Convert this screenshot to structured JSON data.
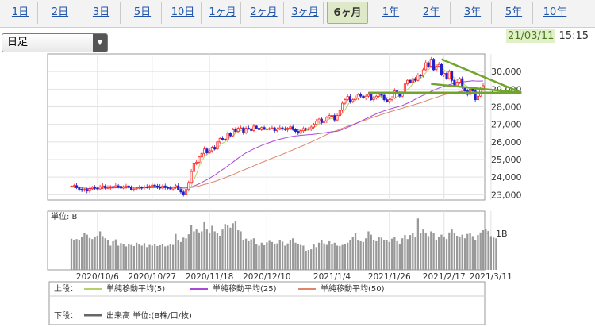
{
  "tabs": [
    {
      "label": "1日",
      "active": false
    },
    {
      "label": "2日",
      "active": false
    },
    {
      "label": "3日",
      "active": false
    },
    {
      "label": "5日",
      "active": false
    },
    {
      "label": "10日",
      "active": false
    },
    {
      "label": "1ヶ月",
      "active": false
    },
    {
      "label": "2ヶ月",
      "active": false
    },
    {
      "label": "3ヶ月",
      "active": false
    },
    {
      "label": "6ヶ月",
      "active": true
    },
    {
      "label": "1年",
      "active": false
    },
    {
      "label": "2年",
      "active": false
    },
    {
      "label": "3年",
      "active": false
    },
    {
      "label": "5年",
      "active": false
    },
    {
      "label": "10年",
      "active": false
    }
  ],
  "controls": {
    "period_select": "日足"
  },
  "header": {
    "date": "21/03/11",
    "time": "15:15"
  },
  "colors": {
    "ma5": "#b5d26a",
    "ma25": "#a84ad8",
    "ma50": "#e0846b",
    "trend": "#6fa62a",
    "up": "#ff2222",
    "down": "#2222cc",
    "volume": "#999999"
  },
  "chart_data": {
    "type": "candlestick",
    "x_tick_labels": [
      "2020/10/6",
      "2020/10/27",
      "2020/11/18",
      "2020/12/10",
      "2021/1/4",
      "2021/1/26",
      "2021/2/17",
      "2021/3/11"
    ],
    "y_tick_labels": [
      "23,000",
      "24,000",
      "25,000",
      "26,000",
      "27,000",
      "28,000",
      "29,000",
      "30,000"
    ],
    "ylim": [
      22700,
      31000
    ],
    "close_series": [
      23480,
      23520,
      23400,
      23310,
      23250,
      23300,
      23210,
      23350,
      23420,
      23380,
      23330,
      23460,
      23500,
      23390,
      23410,
      23470,
      23440,
      23510,
      23480,
      23380,
      23460,
      23500,
      23430,
      23300,
      23330,
      23380,
      23420,
      23390,
      23450,
      23410,
      23480,
      23550,
      23500,
      23450,
      23380,
      23500,
      23410,
      23390,
      23330,
      23420,
      23510,
      23300,
      23160,
      22990,
      23300,
      23700,
      24320,
      24800,
      24850,
      25150,
      25350,
      25600,
      25380,
      25500,
      25700,
      25600,
      26000,
      26200,
      26150,
      26100,
      26500,
      26350,
      26700,
      26600,
      26780,
      26800,
      26520,
      26780,
      26750,
      26650,
      26900,
      26780,
      26700,
      26820,
      26720,
      26740,
      26760,
      26800,
      26640,
      26720,
      26800,
      26750,
      26700,
      26780,
      26860,
      26700,
      26600,
      26500,
      26640,
      26760,
      26720,
      26750,
      26850,
      27000,
      27180,
      27300,
      27100,
      27200,
      27400,
      27500,
      27500,
      27250,
      27500,
      27800,
      28200,
      28400,
      28580,
      28300,
      28400,
      28500,
      28700,
      28600,
      28500,
      28600,
      28700,
      28400,
      28500,
      28600,
      28700,
      28650,
      28400,
      28300,
      28400,
      28500,
      28900,
      28750,
      28600,
      28800,
      29300,
      29500,
      29380,
      29600,
      29500,
      29800,
      29750,
      30100,
      30500,
      30300,
      30700,
      30100,
      30300,
      30400,
      29800,
      29900,
      29600,
      30000,
      29500,
      29200,
      29400,
      29600,
      29100,
      28900,
      28700,
      29000,
      28900,
      28400,
      28600,
      29000,
      29200
    ],
    "ma5": [
      23480,
      23503,
      23470,
      23427,
      23392,
      23356,
      23294,
      23284,
      23306,
      23332,
      23358,
      23388,
      23416,
      23412,
      23418,
      23446,
      23442,
      23444,
      23462,
      23456,
      23456,
      23466,
      23454,
      23414,
      23404,
      23388,
      23372,
      23384,
      23394,
      23410,
      23430,
      23458,
      23476,
      23478,
      23472,
      23456,
      23448,
      23426,
      23404,
      23412,
      23412,
      23392,
      23344,
      23284,
      23236,
      23270,
      23494,
      23854,
      24194,
      24624,
      24894,
      25150,
      25266,
      25396,
      25506,
      25566,
      25636,
      25800,
      25930,
      26010,
      26190,
      26260,
      26360,
      26490,
      26586,
      26646,
      26680,
      26696,
      26730,
      26700,
      26720,
      26772,
      26756,
      26770,
      26784,
      26752,
      26748,
      26768,
      26732,
      26732,
      26744,
      26742,
      26722,
      26750,
      26778,
      26758,
      26728,
      26688,
      26660,
      26640,
      26644,
      26674,
      26744,
      26816,
      26900,
      27022,
      27086,
      27156,
      27236,
      27300,
      27340,
      27350,
      27370,
      27450,
      27650,
      27830,
      28096,
      28296,
      28376,
      28436,
      28496,
      28520,
      28540,
      28580,
      28620,
      28560,
      28540,
      28560,
      28580,
      28570,
      28550,
      28530,
      28490,
      28450,
      28500,
      28570,
      28630,
      28710,
      28870,
      28990,
      29116,
      29316,
      29456,
      29556,
      29606,
      29750,
      29930,
      30090,
      30280,
      30340,
      30380,
      30360,
      30280,
      30100,
      30000,
      29940,
      29760,
      29640,
      29540,
      29540,
      29380,
      29240,
      29140,
      29060,
      28940,
      28780,
      28720,
      28740,
      28780
    ],
    "ma25": [
      23480,
      23500,
      23467,
      23428,
      23392,
      23377,
      23353,
      23353,
      23360,
      23362,
      23359,
      23367,
      23378,
      23379,
      23381,
      23387,
      23390,
      23397,
      23402,
      23401,
      23404,
      23408,
      23409,
      23402,
      23398,
      23400,
      23398,
      23398,
      23400,
      23403,
      23405,
      23407,
      23408,
      23408,
      23409,
      23410,
      23410,
      23409,
      23409,
      23410,
      23415,
      23407,
      23397,
      23382,
      23384,
      23399,
      23442,
      23497,
      23556,
      23624,
      23697,
      23778,
      23855,
      23935,
      24027,
      24116,
      24219,
      24329,
      24430,
      24529,
      24639,
      24742,
      24858,
      24968,
      25082,
      25187,
      25284,
      25378,
      25458,
      25534,
      25603,
      25673,
      25737,
      25802,
      25860,
      25917,
      25968,
      26018,
      26066,
      26116,
      26154,
      26191,
      26228,
      26258,
      26292,
      26320,
      26344,
      26356,
      26375,
      26390,
      26400,
      26417,
      26423,
      26439,
      26455,
      26475,
      26492,
      26513,
      26539,
      26562,
      26584,
      26596,
      26617,
      26650,
      26705,
      26767,
      26836,
      26894,
      26962,
      27031,
      27100,
      27175,
      27246,
      27319,
      27389,
      27458,
      27530,
      27596,
      27659,
      27717,
      27764,
      27805,
      27856,
      27904,
      27945,
      27982,
      28030,
      28079,
      28136,
      28204,
      28271,
      28352,
      28428,
      28508,
      28580,
      28648,
      28721,
      28793,
      28876,
      28935,
      28998,
      29059,
      29110,
      29158,
      29206,
      29257,
      29292,
      29326,
      29356,
      29383,
      29407,
      29426,
      29442,
      29460,
      29474,
      29466,
      29462,
      29464,
      29466
    ],
    "ma50": [
      23480,
      23500,
      23467,
      23428,
      23392,
      23377,
      23353,
      23353,
      23360,
      23362,
      23359,
      23367,
      23378,
      23379,
      23381,
      23387,
      23390,
      23397,
      23402,
      23401,
      23404,
      23408,
      23409,
      23402,
      23398,
      23400,
      23398,
      23398,
      23400,
      23403,
      23405,
      23407,
      23408,
      23408,
      23409,
      23410,
      23410,
      23409,
      23409,
      23410,
      23415,
      23407,
      23397,
      23382,
      23384,
      23399,
      23414,
      23440,
      23465,
      23499,
      23539,
      23584,
      23622,
      23667,
      23713,
      23754,
      23806,
      23862,
      23915,
      23967,
      24029,
      24081,
      24148,
      24208,
      24274,
      24339,
      24394,
      24461,
      24520,
      24578,
      24646,
      24706,
      24765,
      24832,
      24887,
      24950,
      25010,
      25072,
      25127,
      25185,
      25241,
      25301,
      25360,
      25423,
      25488,
      25552,
      25616,
      25673,
      25739,
      25801,
      25865,
      25926,
      25996,
      26065,
      26138,
      26210,
      26281,
      26350,
      26420,
      26493,
      26559,
      26611,
      26660,
      26716,
      26777,
      26836,
      26891,
      26941,
      26996,
      27050,
      27104,
      27156,
      27208,
      27257,
      27312,
      27360,
      27413,
      27460,
      27506,
      27555,
      27604,
      27653,
      27701,
      27747,
      27789,
      27832,
      27877,
      27919,
      27963,
      28006,
      28048,
      28091,
      28136,
      28180,
      28226,
      28277,
      28328,
      28384,
      28440,
      28486,
      28533,
      28581,
      28630,
      28676,
      28718,
      28754,
      28788,
      28813,
      28837,
      28861,
      28884,
      28906,
      28926,
      28944,
      28961,
      28976,
      28992,
      29009,
      29027
    ],
    "trendlines": [
      {
        "from": [
          114,
          28800
        ],
        "to": [
          166,
          28800
        ]
      },
      {
        "from": [
          142,
          30700
        ],
        "to": [
          166,
          28800
        ]
      },
      {
        "from": [
          138,
          29300
        ],
        "to": [
          166,
          28800
        ]
      }
    ],
    "volume": {
      "label": "単位: B",
      "tick_label": "1B",
      "values": [
        0.85,
        0.82,
        0.84,
        0.81,
        0.9,
        1.0,
        0.96,
        0.87,
        0.84,
        0.9,
        0.93,
        1.05,
        0.92,
        0.86,
        0.8,
        0.66,
        0.78,
        0.83,
        0.66,
        0.73,
        0.71,
        0.64,
        0.7,
        0.68,
        0.65,
        0.74,
        0.69,
        0.66,
        0.73,
        0.62,
        0.68,
        0.66,
        0.7,
        0.65,
        0.67,
        0.71,
        0.64,
        0.66,
        0.7,
        0.68,
        0.98,
        0.8,
        0.76,
        0.88,
        0.86,
        0.97,
        1.22,
        1.05,
        1.1,
        1.02,
        1.05,
        1.3,
        1.1,
        1.0,
        1.2,
        1.05,
        1.0,
        0.93,
        1.1,
        1.25,
        1.22,
        1.15,
        1.27,
        1.32,
        1.08,
        1.05,
        0.82,
        0.85,
        0.78,
        0.83,
        0.86,
        0.7,
        0.66,
        0.74,
        0.67,
        0.75,
        0.79,
        0.76,
        0.7,
        0.72,
        0.81,
        0.77,
        0.66,
        0.72,
        0.8,
        0.86,
        0.74,
        0.7,
        0.68,
        0.66,
        0.52,
        0.54,
        0.56,
        0.7,
        0.62,
        0.74,
        0.8,
        0.72,
        0.68,
        0.78,
        0.7,
        0.74,
        0.66,
        0.65,
        0.68,
        0.7,
        0.74,
        0.8,
        0.9,
        1.0,
        0.82,
        0.78,
        0.76,
        0.86,
        1.05,
        0.96,
        0.82,
        0.78,
        0.9,
        0.88,
        0.82,
        0.8,
        0.76,
        0.85,
        0.9,
        0.78,
        0.7,
        0.86,
        0.95,
        0.84,
        0.95,
        1.0,
        0.9,
        1.4,
        1.0,
        1.1,
        1.0,
        0.92,
        1.05,
        1.0,
        0.8,
        0.9,
        0.96,
        0.9,
        0.84,
        1.02,
        1.1,
        1.0,
        0.93,
        0.9,
        0.96,
        0.86,
        0.98,
        1.0,
        0.92,
        0.82,
        0.95,
        1.02,
        1.08,
        1.12,
        1.06,
        0.92,
        0.88,
        0.86
      ]
    },
    "legend": {
      "upper_label": "上段：",
      "lower_label": "下段：",
      "items": [
        {
          "name": "単純移動平均(5)",
          "color": "#b5d26a"
        },
        {
          "name": "単純移動平均(25)",
          "color": "#a84ad8"
        },
        {
          "name": "単純移動平均(50)",
          "color": "#e0846b"
        }
      ],
      "volume_item": {
        "name": "出来高 単位:(B株/口/枚)",
        "color": "#666666"
      }
    }
  }
}
